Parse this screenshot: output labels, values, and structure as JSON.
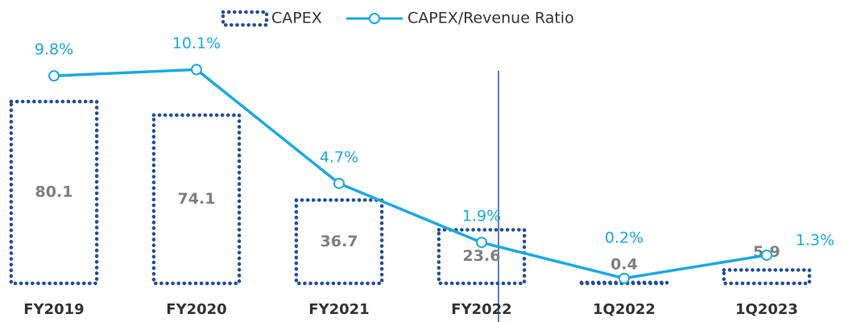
{
  "chart_data": {
    "type": "bar",
    "categories": [
      "FY2019",
      "FY2020",
      "FY2021",
      "FY2022",
      "1Q2022",
      "1Q2023"
    ],
    "series": [
      {
        "name": "CAPEX",
        "type": "bar",
        "color": "#1f4e9c",
        "values": [
          80.1,
          74.1,
          36.7,
          23.6,
          0.4,
          5.9
        ]
      },
      {
        "name": "CAPEX/Revenue Ratio",
        "type": "line",
        "axis": "y2",
        "color": "#1ba9e1",
        "values": [
          9.8,
          10.1,
          4.7,
          1.9,
          0.2,
          1.3
        ],
        "value_labels": [
          "9.8%",
          "10.1%",
          "4.7%",
          "1.9%",
          "0.2%",
          "1.3%"
        ]
      }
    ],
    "ylim": [
      0,
      100
    ],
    "y2lim": [
      0,
      10
    ],
    "grid": false,
    "legend": "top"
  }
}
